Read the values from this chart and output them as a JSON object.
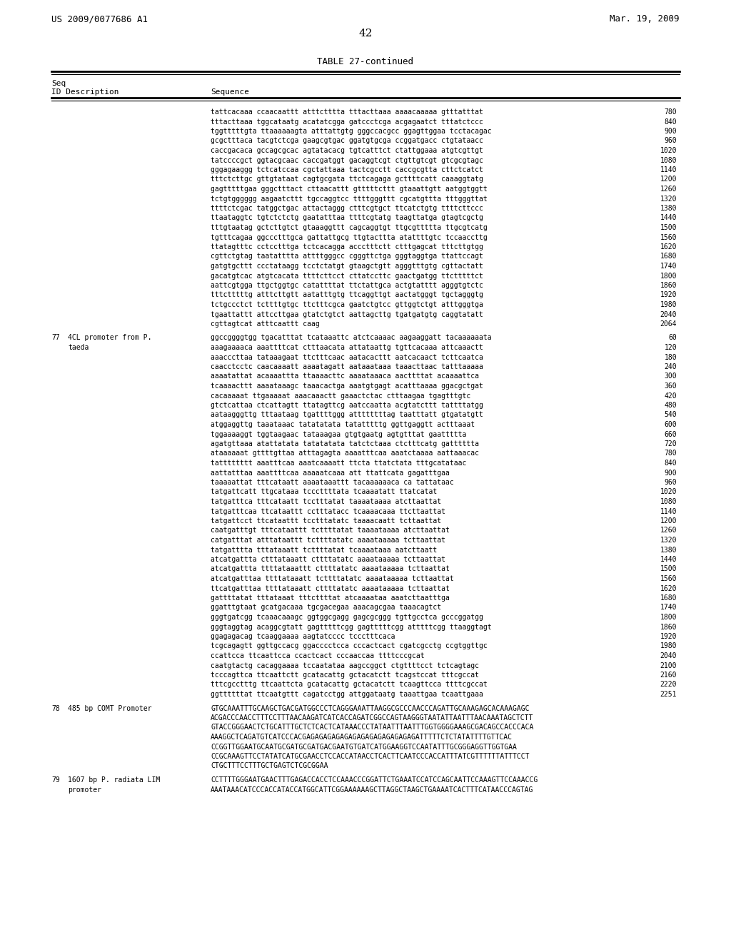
{
  "header_left": "US 2009/0077686 A1",
  "header_right": "Mar. 19, 2009",
  "page_number": "42",
  "table_title": "TABLE 27-continued",
  "col1_header": "Seq\nID Description",
  "col2_header": "Sequence",
  "background_color": "#ffffff",
  "text_color": "#000000",
  "font_size": 7.5,
  "lines": [
    {
      "seq_id": "",
      "desc": "",
      "sequence": "tattcacaaa ccaacaattt  atttctttta tttacttaaa aaaacaaaaa gtttatttat",
      "num": "780"
    },
    {
      "seq_id": "",
      "desc": "",
      "sequence": "tttacttaaa tggcataatg  acatatcgga gatccctcga acgagaatct tttatctccc",
      "num": "840"
    },
    {
      "seq_id": "",
      "desc": "",
      "sequence": "tggtttttgta ttaaaaaagta  atttattgtg gggtccacgc ggagttggaa tcctacagac",
      "num": "900"
    },
    {
      "seq_id": "",
      "desc": "",
      "sequence": "gcgctttaca tacgtctcga  gaagcgtgac ggatgtgcga ccggatgacc ctgtataacc",
      "num": "960"
    },
    {
      "seq_id": "",
      "desc": "",
      "sequence": "caccgacaca gccagcgcac  agtatacacg tgtcatttct ctattggaaa atgtcgttgt",
      "num": "1020"
    },
    {
      "seq_id": "",
      "desc": "",
      "sequence": "tatccccgct ggtacgcaac  caccgatggt gacaggtcgt ctgttgtcgt gtcgcgtagc",
      "num": "1080"
    },
    {
      "seq_id": "",
      "desc": "",
      "sequence": "gggagaaggg tctcatccaa  cgctattaaa tactcgcctt caccgcgtta cttctcatct",
      "num": "1140"
    },
    {
      "seq_id": "",
      "desc": "",
      "sequence": "tttctcttgc gttgtataat  cagtgcgata ttctcagaga gcttttcatt caaaggtatg",
      "num": "1200"
    },
    {
      "seq_id": "",
      "desc": "",
      "sequence": "gagtttttgaa gggctttact  cttaacattt gtttttcttt gtaaattgtt aatggtggtt",
      "num": "1260"
    },
    {
      "seq_id": "",
      "desc": "",
      "sequence": "tctgtgggggg aagaatcttt  tgccaggtcc ttttgggttt cgcatgttta tttgggttat",
      "num": "1320"
    },
    {
      "seq_id": "",
      "desc": "",
      "sequence": "ttttctcgac tatggctgac  attactaggg ctttcgtgct ttcatctgtg ttttcttccc",
      "num": "1380"
    },
    {
      "seq_id": "",
      "desc": "",
      "sequence": "ttaataggtc tgtctctctg  gaatatttaa ttttcgtatg taagttatga gtagtcgctg",
      "num": "1440"
    },
    {
      "seq_id": "",
      "desc": "",
      "sequence": "tttgtaatag gctcttgtct  gtaaaggttt cagcaggtgt ttgcgttttta ttgcgtcatg",
      "num": "1500"
    },
    {
      "seq_id": "",
      "desc": "",
      "sequence": "tgtttcagaa ggccctttgca  gattattgcg ttgtacttta atattttgtc tccaaccttg",
      "num": "1560"
    },
    {
      "seq_id": "",
      "desc": "",
      "sequence": "ttatagtttc cctcctttga  tctcacagga accctttctt ctttgagcat tttcttgtgg",
      "num": "1620"
    },
    {
      "seq_id": "",
      "desc": "",
      "sequence": "cgttctgtag taatatttta  attttgggcc cgggttctga gggtaggtga ttattccagt",
      "num": "1680"
    },
    {
      "seq_id": "",
      "desc": "",
      "sequence": "gatgtgcttt ccctataagg  tcctctatgt gtaagctgtt agggtttgtg cgttactatt",
      "num": "1740"
    },
    {
      "seq_id": "",
      "desc": "",
      "sequence": "gacatgtcac atgtcacata  ttttcttcct cttatccttc gaactgatgg ttctttttct",
      "num": "1800"
    },
    {
      "seq_id": "",
      "desc": "",
      "sequence": "aattcgtgga ttgctggtgc  catattttat ttctattgca actgtatttt agggtgtctc",
      "num": "1860"
    },
    {
      "seq_id": "",
      "desc": "",
      "sequence": "tttctttttg atttcttgtt  aatatttgtg ttcaggttgt aactatgggt tgctagggtg",
      "num": "1920"
    },
    {
      "seq_id": "",
      "desc": "",
      "sequence": "tctgccctct tcttttgtgc  ttctttcgca gaatctgtcc gttggtctgt atttgggtga",
      "num": "1980"
    },
    {
      "seq_id": "",
      "desc": "",
      "sequence": "tgaattattt attccttgaa  gtatctgtct aattagcttg tgatgatgtg caggtatatt",
      "num": "2040"
    },
    {
      "seq_id": "",
      "desc": "",
      "sequence": "cgttagtcat atttcaattt  caag",
      "num": "2064"
    },
    {
      "seq_id": "77",
      "desc": "4CL promoter from P.\ntaeda",
      "sequence": "ggccggggtgg tgacatttat  tcataaattc atctcaaaac aagaaggatt tacaaaaaata",
      "num": "60"
    },
    {
      "seq_id": "",
      "desc": "",
      "sequence": "aaagaaaaca aaattttcat  ctttaacata attataattg tgttcacaaa attcaaactt",
      "num": "120"
    },
    {
      "seq_id": "",
      "desc": "",
      "sequence": "aaacccttaa tataaagaat  ttctttcaac aatacacttt aatcacaact tcttcaatca",
      "num": "180"
    },
    {
      "seq_id": "",
      "desc": "",
      "sequence": "caacctcctc caacaaaatt  aaaatagatt aataaataaa taaacttaac tatttaaaaa",
      "num": "240"
    },
    {
      "seq_id": "",
      "desc": "",
      "sequence": "aaaatattat acaaaattta  ttaaaacttc aaaataaaca aacttttat acaaaattca",
      "num": "300"
    },
    {
      "seq_id": "",
      "desc": "",
      "sequence": "tcaaaacttt aaaataaagc  taaacactga aaatgtgagt acatttaaaa ggacgctgat",
      "num": "360"
    },
    {
      "seq_id": "",
      "desc": "",
      "sequence": "cacaaaaat ttgaaaaat  aaacaaactt gaaactctac ctttaagaa tgagtttgtc",
      "num": "420"
    },
    {
      "seq_id": "",
      "desc": "",
      "sequence": "gtctcattaa ctcattagtt  ttatagttcg aatccaatta acgtatcttt tattttatgg",
      "num": "480"
    },
    {
      "seq_id": "",
      "desc": "",
      "sequence": "aataagggttg tttaataag  tgattttggg attttttttag taatttatt gtgatatgtt",
      "num": "540"
    },
    {
      "seq_id": "",
      "desc": "",
      "sequence": "atggaggttg taaataaac  tatatatata tatatttttg ggttgaggtt actttaaat",
      "num": "600"
    },
    {
      "seq_id": "",
      "desc": "",
      "sequence": "tggaaaaggt tggtaagaac  tataaagaa gtgtgaatg agtgtttat gaattttta",
      "num": "660"
    },
    {
      "seq_id": "",
      "desc": "",
      "sequence": "agatgttaaa atattatata  tatatatata tatctctaaa ctctttcatg gatttttta",
      "num": "720"
    },
    {
      "seq_id": "",
      "desc": "",
      "sequence": "ataaaaaat gttttgttaa  atttagagta aaaatttcaa aaatctaaaa aattaaacac",
      "num": "780"
    },
    {
      "seq_id": "",
      "desc": "",
      "sequence": "tatttttttt aaatttcaa  aaatcaaaatt ttcta ttatctata tttgcatataac",
      "num": "840"
    },
    {
      "seq_id": "",
      "desc": "",
      "sequence": "aattatttaa aaattttcaa  aaaaatcaaa att ttattcata gagatttgaa",
      "num": "900"
    },
    {
      "seq_id": "",
      "desc": "",
      "sequence": "taaaaattat tttcataatt  aaaataaattt tacaaaaaaca ca tattataac",
      "num": "960"
    },
    {
      "seq_id": "",
      "desc": "",
      "sequence": "tatgattcatt ttgcataaa  tcccttttata tcaaaatatt ttatcatat",
      "num": "1020"
    },
    {
      "seq_id": "",
      "desc": "",
      "sequence": "tatgatttca tttcataatt  tcctttatat taaaataaaa atcttaattat",
      "num": "1080"
    },
    {
      "seq_id": "",
      "desc": "",
      "sequence": "tatgatttcaa ttcataattt  cctttatacc tcaaaacaaa ttcttaattat",
      "num": "1140"
    },
    {
      "seq_id": "",
      "desc": "",
      "sequence": "tatgattcct ttcataattt  tcctttatatc taaaacaatt tcttaattat",
      "num": "1200"
    },
    {
      "seq_id": "",
      "desc": "",
      "sequence": "caatgatttgt tttcataattt  tcttttatat taaaataaaa atcttaattat",
      "num": "1260"
    },
    {
      "seq_id": "",
      "desc": "",
      "sequence": "catgatttat atttataattt  tcttttatatc aaaataaaaa tcttaattat",
      "num": "1320"
    },
    {
      "seq_id": "",
      "desc": "",
      "sequence": "tatgatttta tttataaatt  tcttttatat tcaaaataaa aatcttaatt",
      "num": "1380"
    },
    {
      "seq_id": "",
      "desc": "",
      "sequence": "atcatgattta ctttataaatt  cttttatatc aaaataaaaa tcttaattat",
      "num": "1440"
    },
    {
      "seq_id": "",
      "desc": "",
      "sequence": "atcatgattta ttttataaattt  cttttatatc aaaataaaaa tcttaattat",
      "num": "1500"
    },
    {
      "seq_id": "",
      "desc": "",
      "sequence": "atcatgatttaa ttttataaatt  tcttttatatc aaaataaaaa tcttaattat",
      "num": "1560"
    },
    {
      "seq_id": "",
      "desc": "",
      "sequence": "ttcatgatttaa ttttataaatt  cttttatatc aaaataaaaa tcttaattat",
      "num": "1620"
    },
    {
      "seq_id": "",
      "desc": "",
      "sequence": "gattttatat tttataaat tttcttttat atcaaaataa aaatcttaatttga",
      "num": "1680"
    },
    {
      "seq_id": "",
      "desc": "",
      "sequence": "ggatttgtaat gcatgacaaa  tgcgacegaa aaacagcgaa taaacagtct",
      "num": "1740"
    },
    {
      "seq_id": "",
      "desc": "",
      "sequence": "gggtgatcgg tcaaacaaagc  ggtggcgagg gagcgcggg tgttgcctca gcccggatgg",
      "num": "1800"
    },
    {
      "seq_id": "",
      "desc": "",
      "sequence": "gggtaggtag acaggcgtatt  gagtttttcgg gagtttttcgg atttttcgg ttaaggtagt",
      "num": "1860"
    },
    {
      "seq_id": "",
      "desc": "",
      "sequence": "ggagagacag tcaaggaaaa  aagtatcccc tccctttcaca",
      "num": "1920"
    },
    {
      "seq_id": "",
      "desc": "",
      "sequence": "tcgcagagtt ggttgccacg  ggacccctcca cccactcact cgatcgcctg ccgtggttgc",
      "num": "1980"
    },
    {
      "seq_id": "",
      "desc": "",
      "sequence": "ccattcca ttcaattcca  ccactcact cccaaccaa ttttcccgcat",
      "num": "2040"
    },
    {
      "seq_id": "",
      "desc": "",
      "sequence": "caatgtactg cacaggaaaa  tccaatataa aagccggct ctgttttcct tctcagtagc",
      "num": "2100"
    },
    {
      "seq_id": "",
      "desc": "",
      "sequence": "tcccagttca ttcaattctt  gcatacattg gctacatctt tcagstccat tttcgccat",
      "num": "2160"
    },
    {
      "seq_id": "",
      "desc": "",
      "sequence": "tttcgcctttg ttcaattcta  gcatacattg gctacatctt tcaagttcca ttttcgccat",
      "num": "2220"
    },
    {
      "seq_id": "",
      "desc": "",
      "sequence": "ggttttttat ttcaatgttt  cagatcctgg attggataatg taaattgaa tcaattgaaa",
      "num": "2251"
    },
    {
      "seq_id": "78",
      "desc": "485 bp COMT Promoter",
      "sequence": "GTGCAAATTTGCAAGCTGACGATGGCCCTCAGGGAAATTAAGGCGCCCAACCCAGATTGCAAAGAGCACAAAGAGC",
      "num": ""
    },
    {
      "seq_id": "",
      "desc": "",
      "sequence": "ACGACCCAACCTTTCCTTTAACAAGATCATCACCAGATCGGCCAGTAAGGGTAATATTAATTTAACAAATAGCTCTT",
      "num": ""
    },
    {
      "seq_id": "",
      "desc": "",
      "sequence": "GTACCGGGAACTCTGCATTTGCTCTCACTCATAAACCCTATAATTTAATTTGGTGGGGAAAGCGACAGCCACCCACA",
      "num": ""
    },
    {
      "seq_id": "",
      "desc": "",
      "sequence": "AAAGGCTCAGATGTCATCCCACGAGAGAGAGAGAGAGAGAGAGAGAGAGAGATTTTTCTCTATATTTTGTTCAC",
      "num": ""
    },
    {
      "seq_id": "",
      "desc": "",
      "sequence": "CCGGTTGGAATGCAATGCGATGCGATGACGAATGTGATCATGGAAGGTCCAATATTTGCGGGAGGTTGGTGAA",
      "num": ""
    },
    {
      "seq_id": "",
      "desc": "",
      "sequence": "CCGCAAAGTTCCTATATCATGCGAACCTCCACCATAACCTCACTTCAATCCCACCATTTATCGTTTTTTATTTCCT",
      "num": ""
    },
    {
      "seq_id": "",
      "desc": "",
      "sequence": "CTGCTTTCCTTTGCTGAGTCTCGCGGAA",
      "num": ""
    },
    {
      "seq_id": "79",
      "desc": "1607 bp P. radiata LIM\npromoter",
      "sequence": "CCTTTTGGGAATGAACTTTGAGACCACCTCCAAACCCGGATTCTGAAATCCATCCAGCAATTCCAAAGTTCCAAACCG",
      "num": ""
    },
    {
      "seq_id": "",
      "desc": "",
      "sequence": "AAATAAACATCCCACCATACCATGGCATTCGGAAAAAAGCTTAGGCTAAGCTGAAAATCACTTTCATAACCCAGTAG",
      "num": ""
    }
  ]
}
